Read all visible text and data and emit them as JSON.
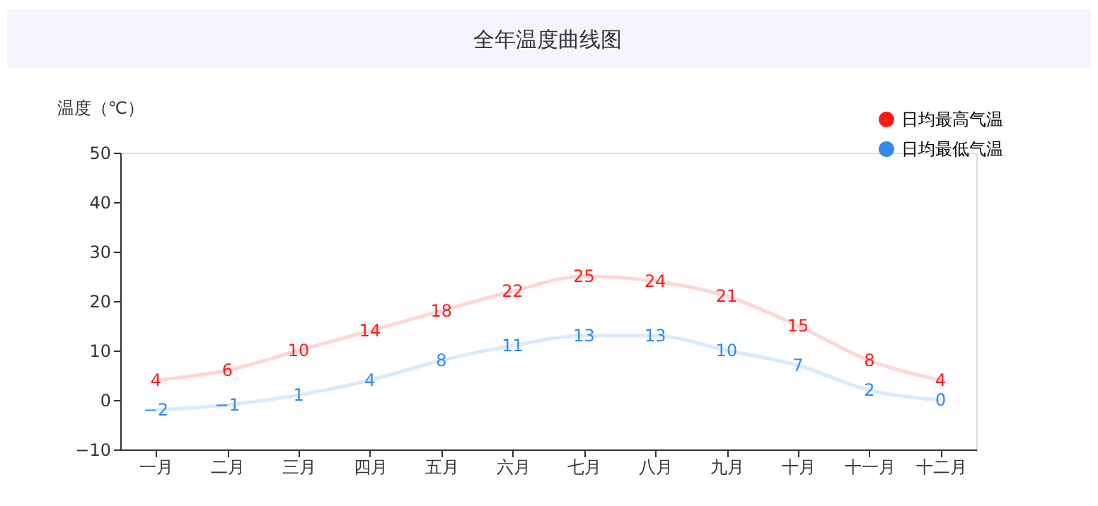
{
  "chart_data": {
    "type": "line",
    "title": "全年温度曲线图",
    "ylabel": "温度（℃）",
    "categories": [
      "一月",
      "二月",
      "三月",
      "四月",
      "五月",
      "六月",
      "七月",
      "八月",
      "九月",
      "十月",
      "十一月",
      "十二月"
    ],
    "series": [
      {
        "name": "日均最高气温",
        "color": "#ff1a1a",
        "values": [
          4,
          6,
          10,
          14,
          18,
          22,
          25,
          24,
          21,
          15,
          8,
          4
        ]
      },
      {
        "name": "日均最低气温",
        "color": "#3388ee",
        "values": [
          -2,
          -1,
          1,
          4,
          8,
          11,
          13,
          13,
          10,
          7,
          2,
          0
        ]
      }
    ],
    "ylim": [
      -10,
      50
    ],
    "yticks": [
      -10,
      0,
      10,
      20,
      30,
      40,
      50
    ],
    "grid": false,
    "legend": "top right",
    "data_labels": true,
    "marker": "none",
    "line_style": "solid"
  }
}
